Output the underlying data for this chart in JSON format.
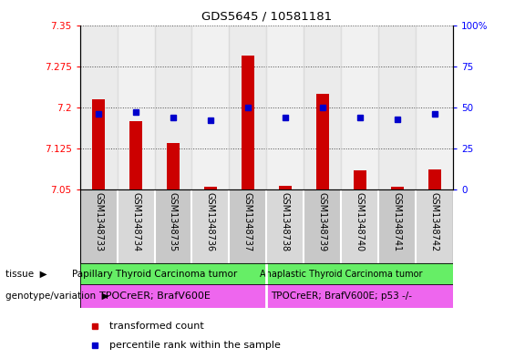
{
  "title": "GDS5645 / 10581181",
  "samples": [
    "GSM1348733",
    "GSM1348734",
    "GSM1348735",
    "GSM1348736",
    "GSM1348737",
    "GSM1348738",
    "GSM1348739",
    "GSM1348740",
    "GSM1348741",
    "GSM1348742"
  ],
  "transformed_count": [
    7.215,
    7.175,
    7.135,
    7.055,
    7.295,
    7.057,
    7.225,
    7.085,
    7.055,
    7.087
  ],
  "percentile_rank": [
    46,
    47,
    44,
    42,
    50,
    44,
    50,
    44,
    43,
    46
  ],
  "ylim_left": [
    7.05,
    7.35
  ],
  "ylim_right": [
    0,
    100
  ],
  "yticks_left": [
    7.05,
    7.125,
    7.2,
    7.275,
    7.35
  ],
  "yticks_right": [
    0,
    25,
    50,
    75,
    100
  ],
  "bar_color": "#cc0000",
  "dot_color": "#0000cc",
  "bar_width": 0.35,
  "tissue_group1_label": "Papillary Thyroid Carcinoma tumor",
  "tissue_group2_label": "Anaplastic Thyroid Carcinoma tumor",
  "tissue_color": "#66ee66",
  "genotype_group1_label": "TPOCreER; BrafV600E",
  "genotype_group2_label": "TPOCreER; BrafV600E; p53 -/-",
  "genotype_color": "#ee66ee",
  "tissue_label": "tissue",
  "genotype_label": "genotype/variation",
  "legend_label1": "transformed count",
  "legend_label2": "percentile rank within the sample",
  "legend_color1": "#cc0000",
  "legend_color2": "#0000cc",
  "col_bg_even": "#c8c8c8",
  "col_bg_odd": "#d8d8d8",
  "split_at": 5
}
